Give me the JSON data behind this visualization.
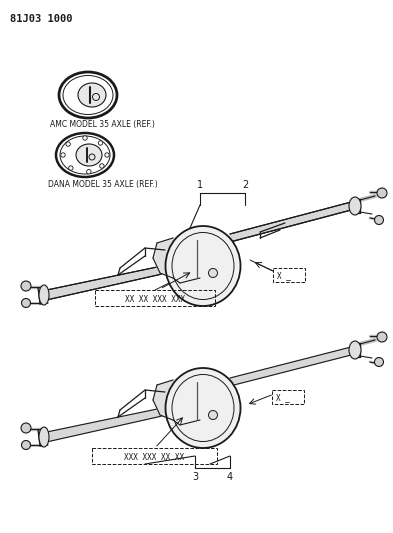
{
  "page_id": "81J03 1000",
  "bg_color": "#ffffff",
  "line_color": "#1a1a1a",
  "text_color": "#1a1a1a",
  "gray_color": "#888888",
  "light_gray": "#cccccc",
  "amc_label": "AMC MODEL 35 AXLE (REF.)",
  "dana_label": "DANA MODEL 35 AXLE (REF.)",
  "callout_1": "1",
  "callout_2": "2",
  "callout_3": "3",
  "callout_4": "4",
  "part_box_top": "XX XX XXX XXX",
  "part_box_bottom": "XXX XXX XX XX",
  "x_label": "X",
  "figsize": [
    3.93,
    5.33
  ],
  "dpi": 100
}
